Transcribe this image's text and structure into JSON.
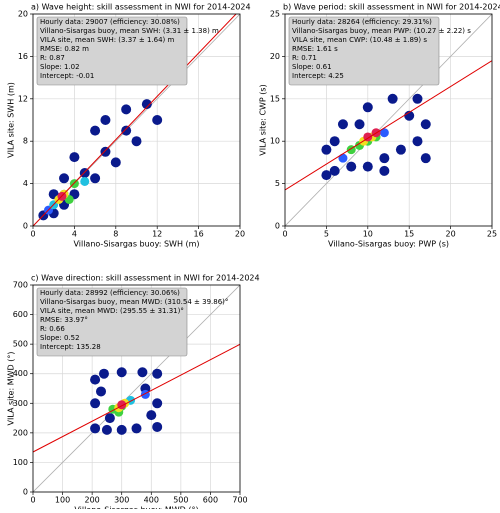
{
  "chart_data": [
    {
      "type": "scatter",
      "title": "a) Wave height: skill assessment in NWI for 2014-2024",
      "annotation": [
        "Hourly data: 29007 (efficiency: 30.08%)",
        "Villano-Sisargas buoy, mean SWH: (3.31 ± 1.38) m",
        "VILA site, mean SWH: (3.37 ± 1.64) m",
        "RMSE: 0.82 m",
        "R: 0.87",
        "Slope: 1.02",
        "Intercept: -0.01"
      ],
      "xlabel": "Villano-Sisargas buoy: SWH (m)",
      "ylabel": "VILA site: SWH (m)",
      "xlim": [
        0,
        20
      ],
      "ylim": [
        0,
        20
      ],
      "xticks": [
        0,
        4,
        8,
        12,
        16,
        20
      ],
      "yticks": [
        0,
        4,
        8,
        12,
        16,
        20
      ],
      "grid": true,
      "x": [
        1,
        2,
        2,
        3,
        3,
        4,
        5,
        6,
        7,
        8,
        9,
        10,
        6,
        11,
        9,
        4,
        7,
        12,
        1.5,
        2,
        3,
        4,
        5,
        3.5,
        2.5,
        3,
        2.8
      ],
      "y": [
        1,
        1.2,
        3,
        2,
        4.5,
        3,
        5,
        4.5,
        7,
        6,
        9,
        8,
        9,
        11.5,
        11,
        6.5,
        10,
        10,
        1.5,
        2,
        3,
        4,
        4.2,
        2.5,
        2.5,
        3,
        2.8
      ],
      "colors": [
        "#0a1a8c",
        "#0a1a8c",
        "#0a1a8c",
        "#0a1a8c",
        "#0a1a8c",
        "#0a1a8c",
        "#0a1a8c",
        "#0a1a8c",
        "#0a1a8c",
        "#0a1a8c",
        "#0a1a8c",
        "#0a1a8c",
        "#0a1a8c",
        "#0a1a8c",
        "#0a1a8c",
        "#0a1a8c",
        "#0a1a8c",
        "#0a1a8c",
        "#2a5cff",
        "#20c0e0",
        "#40d040",
        "#40d040",
        "#20c0e0",
        "#40d040",
        "#f0e020",
        "#f0e020",
        "#e02050"
      ],
      "fit": {
        "slope": 1.02,
        "intercept": -0.01
      },
      "fit_color": "#e00000",
      "identity_color": "#b0b0b0"
    },
    {
      "type": "scatter",
      "title": "b) Wave period: skill assessment in NWI for 2014-2024",
      "annotation": [
        "Hourly data: 28264 (efficiency: 29.31%)",
        "Villano-Sisargas buoy, mean PWP: (10.27 ± 2.22) s",
        "VILA site, mean CWP: (10.48 ± 1.89) s",
        "RMSE: 1.61 s",
        "R: 0.71",
        "Slope: 0.61",
        "Intercept: 4.25"
      ],
      "xlabel": "Villano-Sisargas buoy: PWP (s)",
      "ylabel": "VILA site: CWP (s)",
      "xlim": [
        0,
        25
      ],
      "ylim": [
        0,
        25
      ],
      "xticks": [
        0,
        5,
        10,
        15,
        20,
        25
      ],
      "yticks": [
        0,
        5,
        10,
        15,
        20,
        25
      ],
      "grid": true,
      "x": [
        5,
        6,
        8,
        10,
        12,
        14,
        16,
        17,
        16,
        13,
        10,
        7,
        5,
        6,
        9,
        15,
        17,
        12,
        7,
        8,
        9,
        10,
        11,
        12,
        9.5,
        10.5,
        10,
        11
      ],
      "y": [
        6,
        6.5,
        7,
        7,
        8,
        9,
        10,
        12,
        15,
        15,
        14,
        12,
        9,
        10,
        12,
        13,
        8,
        6.5,
        8,
        9,
        9.5,
        10,
        10.5,
        11,
        10,
        10.5,
        10.5,
        11
      ],
      "colors": [
        "#0a1a8c",
        "#0a1a8c",
        "#0a1a8c",
        "#0a1a8c",
        "#0a1a8c",
        "#0a1a8c",
        "#0a1a8c",
        "#0a1a8c",
        "#0a1a8c",
        "#0a1a8c",
        "#0a1a8c",
        "#0a1a8c",
        "#0a1a8c",
        "#0a1a8c",
        "#0a1a8c",
        "#0a1a8c",
        "#0a1a8c",
        "#0a1a8c",
        "#2a5cff",
        "#40d040",
        "#40d040",
        "#40d040",
        "#40d040",
        "#2a5cff",
        "#f0e020",
        "#f0e020",
        "#e02050",
        "#e02050"
      ],
      "fit": {
        "slope": 0.61,
        "intercept": 4.25
      },
      "fit_color": "#e00000",
      "identity_color": "#b0b0b0"
    },
    {
      "type": "scatter",
      "title": "c) Wave direction: skill assessment in NWI for 2014-2024",
      "annotation": [
        "Hourly data: 28992 (efficiency: 30.06%)",
        "Villano-Sisargas buoy, mean MWD: (310.54 ± 39.86)°",
        "VILA site, mean MWD: (295.55 ± 31.31)°",
        "RMSE: 33.97°",
        "R: 0.66",
        "Slope: 0.52",
        "Intercept: 135.28"
      ],
      "xlabel": "Villano-Sisargas buoy: MWD (°)",
      "ylabel": "VILA site: MWD (°)",
      "xlim": [
        0,
        700
      ],
      "ylim": [
        0,
        700
      ],
      "xticks": [
        0,
        100,
        200,
        300,
        400,
        500,
        600,
        700
      ],
      "yticks": [
        0,
        100,
        200,
        300,
        400,
        500,
        600,
        700
      ],
      "grid": true,
      "x": [
        210,
        250,
        300,
        350,
        420,
        420,
        420,
        370,
        300,
        240,
        210,
        210,
        260,
        380,
        400,
        230,
        380,
        270,
        300,
        330,
        290,
        290,
        310,
        300
      ],
      "y": [
        215,
        210,
        210,
        215,
        220,
        300,
        400,
        405,
        405,
        400,
        380,
        300,
        250,
        350,
        260,
        340,
        330,
        280,
        290,
        310,
        270,
        285,
        300,
        295
      ],
      "colors": [
        "#0a1a8c",
        "#0a1a8c",
        "#0a1a8c",
        "#0a1a8c",
        "#0a1a8c",
        "#0a1a8c",
        "#0a1a8c",
        "#0a1a8c",
        "#0a1a8c",
        "#0a1a8c",
        "#0a1a8c",
        "#0a1a8c",
        "#0a1a8c",
        "#0a1a8c",
        "#0a1a8c",
        "#0a1a8c",
        "#2a5cff",
        "#40d040",
        "#40d040",
        "#20c0e0",
        "#40d040",
        "#f0e020",
        "#f0e020",
        "#e02050"
      ],
      "fit": {
        "slope": 0.52,
        "intercept": 135.28
      },
      "fit_color": "#e00000",
      "identity_color": "#b0b0b0"
    }
  ]
}
